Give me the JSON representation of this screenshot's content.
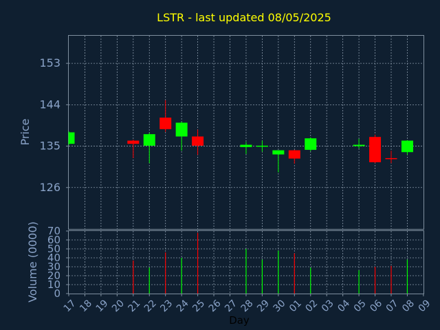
{
  "chart_data": {
    "type": "candlestick",
    "title": "LSTR - last updated 08/05/2025",
    "xlabel": "Day",
    "price_panel": {
      "ylabel": "Price",
      "yticks": [
        126,
        135,
        144,
        153
      ],
      "ylim": [
        117,
        159
      ]
    },
    "volume_panel": {
      "ylabel": "Volume (0000)",
      "yticks": [
        0,
        10,
        20,
        30,
        40,
        50,
        60,
        70
      ],
      "ylim": [
        0,
        70
      ]
    },
    "x_tick_labels": [
      "17",
      "18",
      "19",
      "20",
      "21",
      "22",
      "23",
      "24",
      "25",
      "26",
      "27",
      "28",
      "29",
      "30",
      "01",
      "02",
      "03",
      "04",
      "05",
      "06",
      "07",
      "08",
      "09"
    ],
    "candles": [
      {
        "day": "17",
        "open": 135.5,
        "high": 138.2,
        "low": 135.3,
        "close": 138.0,
        "volume": null
      },
      {
        "day": "21",
        "open": 136.2,
        "high": 136.4,
        "low": 132.4,
        "close": 135.5,
        "volume": 37
      },
      {
        "day": "22",
        "open": 135.1,
        "high": 137.9,
        "low": 131.3,
        "close": 137.6,
        "volume": 29
      },
      {
        "day": "23",
        "open": 141.2,
        "high": 145.0,
        "low": 138.1,
        "close": 138.7,
        "volume": 46
      },
      {
        "day": "24",
        "open": 137.1,
        "high": 140.3,
        "low": 134.0,
        "close": 140.1,
        "volume": 40
      },
      {
        "day": "25",
        "open": 137.1,
        "high": 138.6,
        "low": 133.1,
        "close": 135.1,
        "volume": 68
      },
      {
        "day": "28",
        "open": 134.8,
        "high": 135.9,
        "low": 133.3,
        "close": 135.3,
        "volume": 50
      },
      {
        "day": "29",
        "open": 135.0,
        "high": 136.2,
        "low": 133.8,
        "close": 135.1,
        "volume": 38
      },
      {
        "day": "30",
        "open": 133.2,
        "high": 134.1,
        "low": 129.3,
        "close": 134.1,
        "volume": 48
      },
      {
        "day": "01",
        "open": 134.1,
        "high": 134.2,
        "low": 131.2,
        "close": 132.3,
        "volume": 45
      },
      {
        "day": "02",
        "open": 134.2,
        "high": 136.9,
        "low": 133.9,
        "close": 136.7,
        "volume": 29
      },
      {
        "day": "05",
        "open": 135.0,
        "high": 136.6,
        "low": 134.5,
        "close": 135.3,
        "volume": 26
      },
      {
        "day": "06",
        "open": 137.0,
        "high": 137.5,
        "low": 131.3,
        "close": 131.5,
        "volume": 30
      },
      {
        "day": "07",
        "open": 132.4,
        "high": 134.0,
        "low": 131.3,
        "close": 132.2,
        "volume": 31
      },
      {
        "day": "08",
        "open": 133.7,
        "high": 136.3,
        "low": 133.1,
        "close": 136.2,
        "volume": 38
      }
    ],
    "grid": true,
    "colors": {
      "background": "#0f1f30",
      "plot_background": "#0f1f30",
      "frame": "#7f8f9f",
      "grid": "#8a9aaa",
      "title": "#ffff00",
      "axis_text": "#8aa3c8",
      "up": "#00ff00",
      "down": "#ff0000",
      "xlabel": "#000000"
    }
  }
}
